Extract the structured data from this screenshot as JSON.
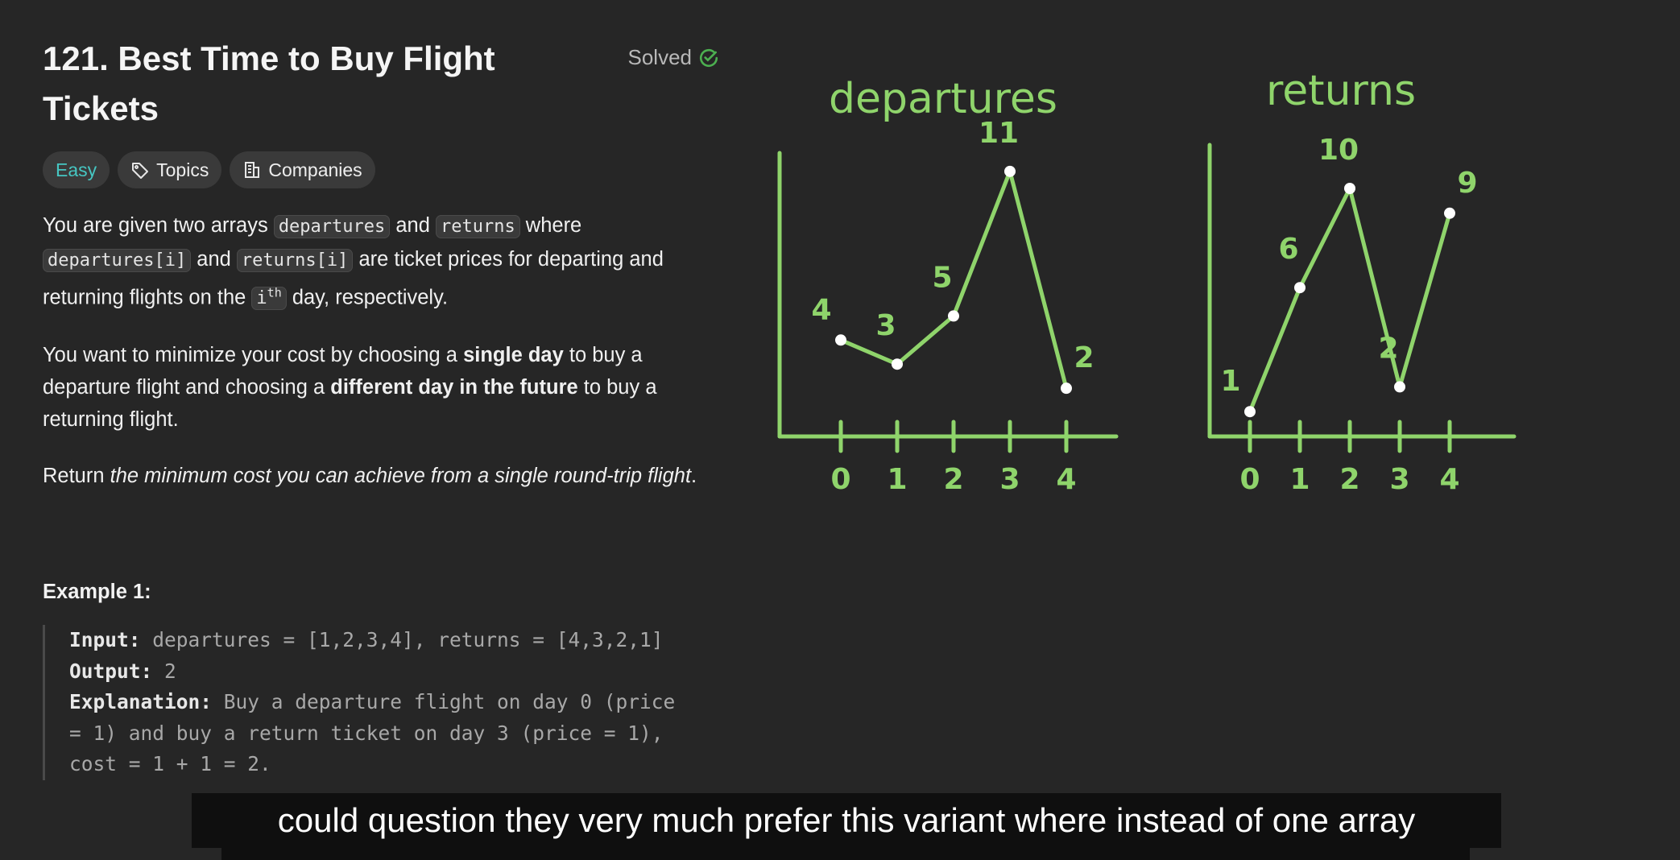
{
  "problem": {
    "title": "121. Best Time to Buy Flight Tickets",
    "status": "Solved",
    "difficulty": "Easy",
    "topics_label": "Topics",
    "companies_label": "Companies"
  },
  "description": {
    "p1": [
      "You are given two arrays ",
      "departures",
      " and ",
      "returns",
      " where ",
      "departures[i]",
      " and ",
      "returns[i]",
      " are ticket prices for departing and returning flights on the ",
      "i",
      "th",
      " day, respectively."
    ],
    "p2": [
      "You want to minimize your cost by choosing a ",
      "single day",
      " to buy a departure flight and choosing a ",
      "different day in the future",
      " to buy a returning flight."
    ],
    "p3": [
      "Return ",
      "the minimum cost you can achieve from a single round-trip flight",
      "."
    ]
  },
  "example": {
    "title": "Example 1:",
    "input_label": "Input:",
    "input_value": "departures = [1,2,3,4], returns = [4,3,2,1]",
    "output_label": "Output:",
    "output_value": "2",
    "explanation_label": "Explanation:",
    "explanation_value": "Buy a departure flight on day 0 (price = 1) and buy a return ticket on day 3 (price = 1), cost = 1 + 1 = 2."
  },
  "chart_data": [
    {
      "type": "line",
      "title": "departures",
      "x": [
        0,
        1,
        2,
        3,
        4
      ],
      "values": [
        4,
        3,
        5,
        11,
        2
      ],
      "color": "#8fd46b"
    },
    {
      "type": "line",
      "title": "returns",
      "x": [
        0,
        1,
        2,
        3,
        4
      ],
      "values": [
        1,
        6,
        10,
        2,
        9
      ],
      "color": "#8fd46b"
    }
  ],
  "subtitle": {
    "text": "could question they very much prefer this variant where instead of one array"
  }
}
